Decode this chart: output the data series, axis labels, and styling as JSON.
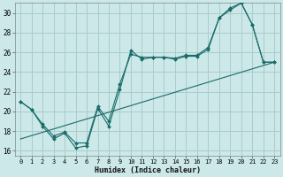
{
  "xlabel": "Humidex (Indice chaleur)",
  "bg_color": "#cce8e8",
  "grid_color": "#aacccc",
  "line_color": "#1a6b6b",
  "xlim": [
    -0.5,
    23.5
  ],
  "ylim": [
    15.5,
    31.0
  ],
  "xticks": [
    0,
    1,
    2,
    3,
    4,
    5,
    6,
    7,
    8,
    9,
    10,
    11,
    12,
    13,
    14,
    15,
    16,
    17,
    18,
    19,
    20,
    21,
    22,
    23
  ],
  "yticks": [
    16,
    18,
    20,
    22,
    24,
    26,
    28,
    30
  ],
  "line1_x": [
    0,
    1,
    2,
    3,
    4,
    5,
    6,
    7,
    8,
    9,
    10,
    11,
    12,
    13,
    14,
    15,
    16,
    17,
    18,
    19,
    20,
    21,
    22,
    23
  ],
  "line1_y": [
    21.0,
    20.2,
    18.5,
    17.2,
    17.8,
    16.3,
    16.5,
    20.3,
    18.5,
    22.2,
    26.2,
    25.3,
    25.5,
    25.5,
    25.3,
    25.6,
    25.6,
    26.3,
    29.5,
    30.5,
    31.0,
    28.8,
    25.0,
    25.0
  ],
  "line2_x": [
    0,
    1,
    2,
    3,
    4,
    5,
    6,
    7,
    8,
    9,
    10,
    11,
    12,
    13,
    14,
    15,
    16,
    17,
    18,
    19,
    20,
    21,
    22,
    23
  ],
  "line2_y": [
    21.0,
    20.2,
    18.7,
    17.5,
    17.9,
    16.8,
    16.8,
    20.5,
    19.0,
    22.8,
    25.8,
    25.5,
    25.5,
    25.5,
    25.4,
    25.7,
    25.7,
    26.5,
    29.5,
    30.3,
    31.0,
    28.8,
    25.0,
    25.0
  ],
  "trend_x": [
    0,
    23
  ],
  "trend_y": [
    17.2,
    25.0
  ]
}
